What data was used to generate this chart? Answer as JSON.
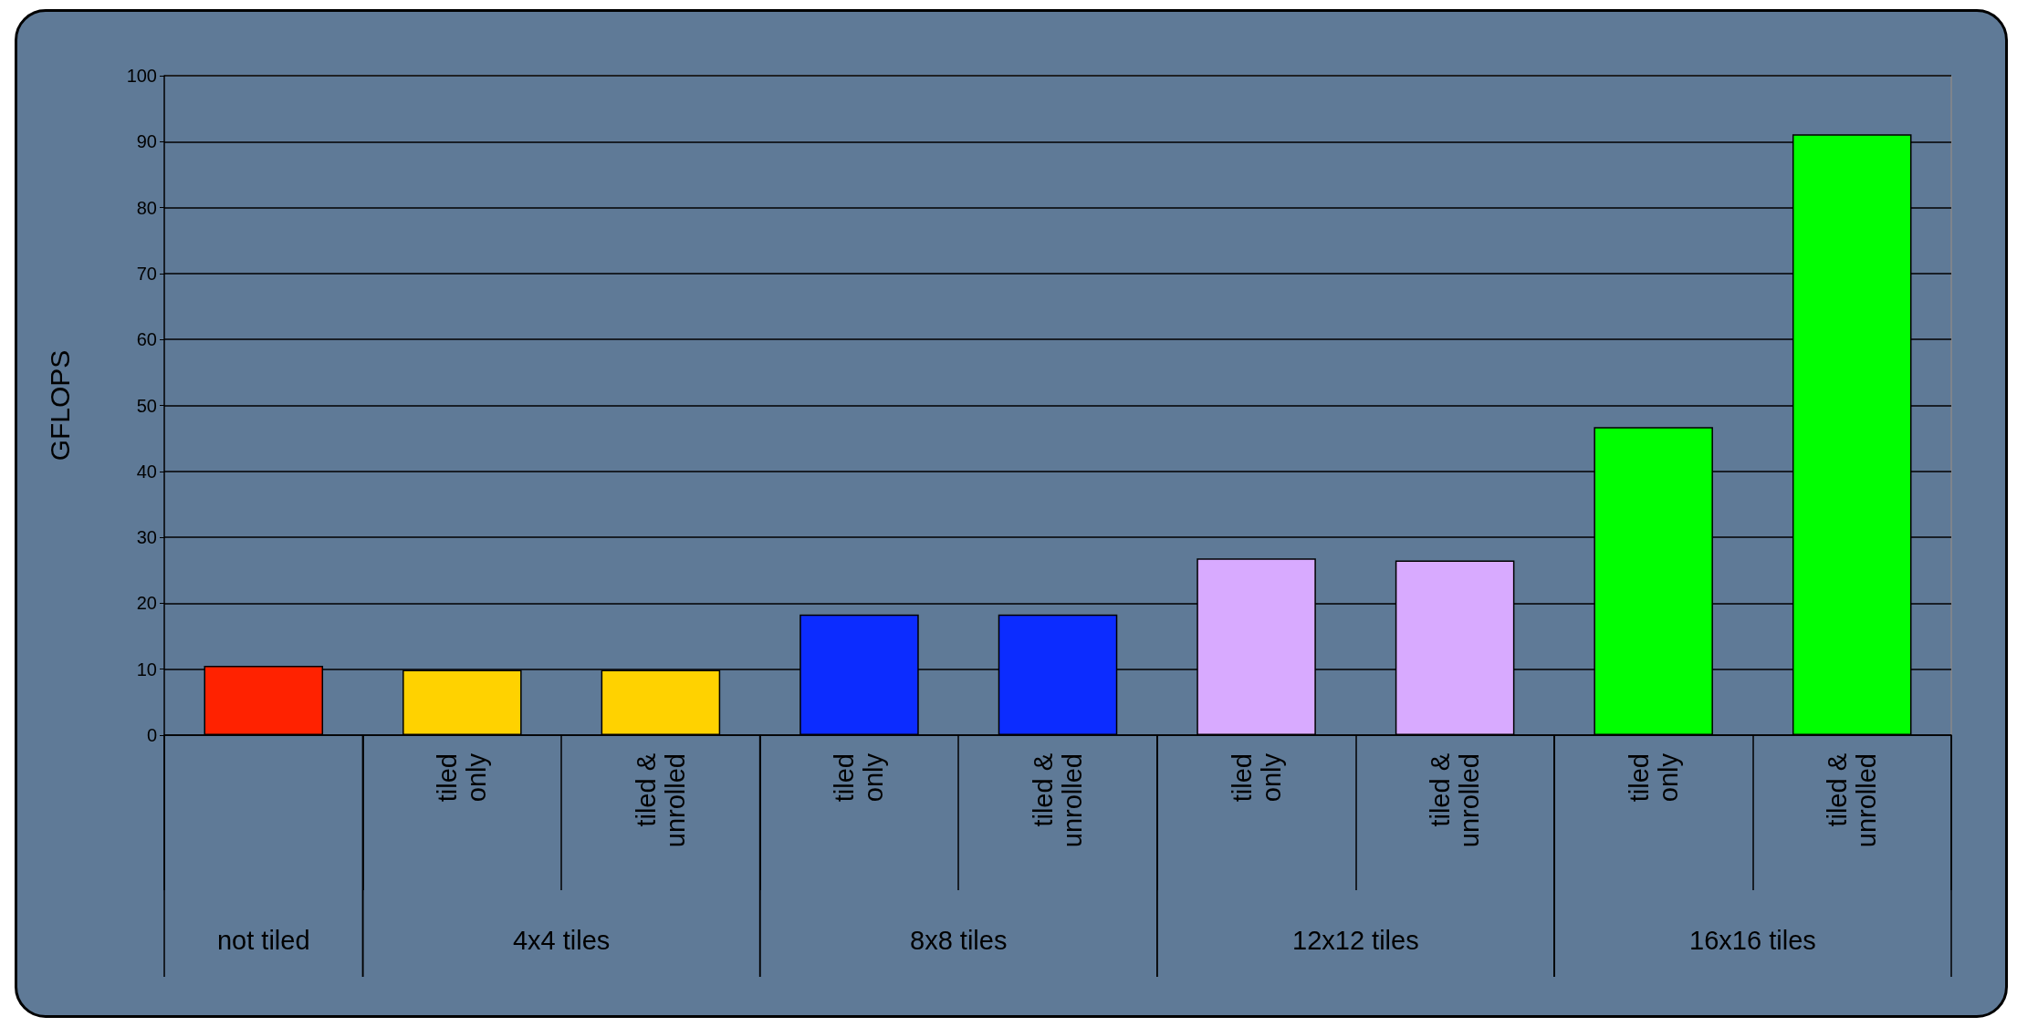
{
  "chart_data": {
    "type": "bar",
    "ylabel": "GFLOPS",
    "categories": [
      null,
      "tiled only",
      "tiled & unrolled",
      "tiled only",
      "tiled & unrolled",
      "tiled only",
      "tiled & unrolled",
      "tiled only",
      "tiled & unrolled"
    ],
    "values": [
      10.5,
      9.9,
      9.9,
      18.3,
      18.3,
      26.8,
      26.5,
      46.7,
      91.1
    ],
    "colors": [
      "#ff2200",
      "#ffd200",
      "#ffd200",
      "#0c2cff",
      "#0c2cff",
      "#d8aaff",
      "#d8aaff",
      "#00ff00",
      "#00ff00"
    ],
    "ylim": [
      0,
      100
    ],
    "yticks": [
      0,
      10,
      20,
      30,
      40,
      50,
      60,
      70,
      80,
      90,
      100
    ],
    "grid": "y",
    "annotations": [
      "not tiled",
      "4x4 tiles",
      "8x8 tiles",
      "12x12 tiles",
      "16x16 tiles"
    ]
  }
}
